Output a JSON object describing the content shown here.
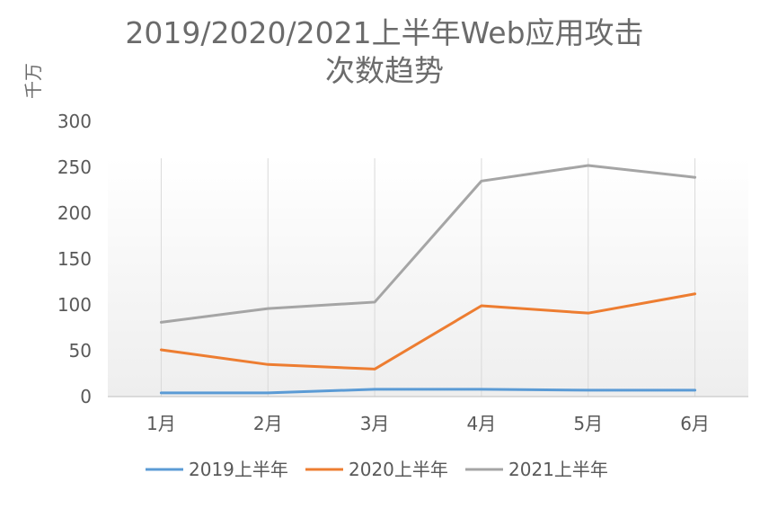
{
  "chart_data": {
    "type": "line",
    "title_lines": [
      "2019/2020/2021上半年Web应用攻击",
      "次数趋势"
    ],
    "ylabel": "千万",
    "categories": [
      "1月",
      "2月",
      "3月",
      "4月",
      "5月",
      "6月"
    ],
    "ylim": [
      0,
      300
    ],
    "yticks": [
      0,
      50,
      100,
      150,
      200,
      250,
      300
    ],
    "grid": "vertical",
    "legend_position": "bottom",
    "series": [
      {
        "name": "2019上半年",
        "color": "#5B9BD5",
        "values": [
          4,
          4,
          8,
          8,
          7,
          7
        ]
      },
      {
        "name": "2020上半年",
        "color": "#ED7D31",
        "values": [
          51,
          35,
          30,
          99,
          91,
          112
        ]
      },
      {
        "name": "2021上半年",
        "color": "#A5A5A5",
        "values": [
          81,
          96,
          103,
          235,
          252,
          239
        ]
      }
    ]
  }
}
